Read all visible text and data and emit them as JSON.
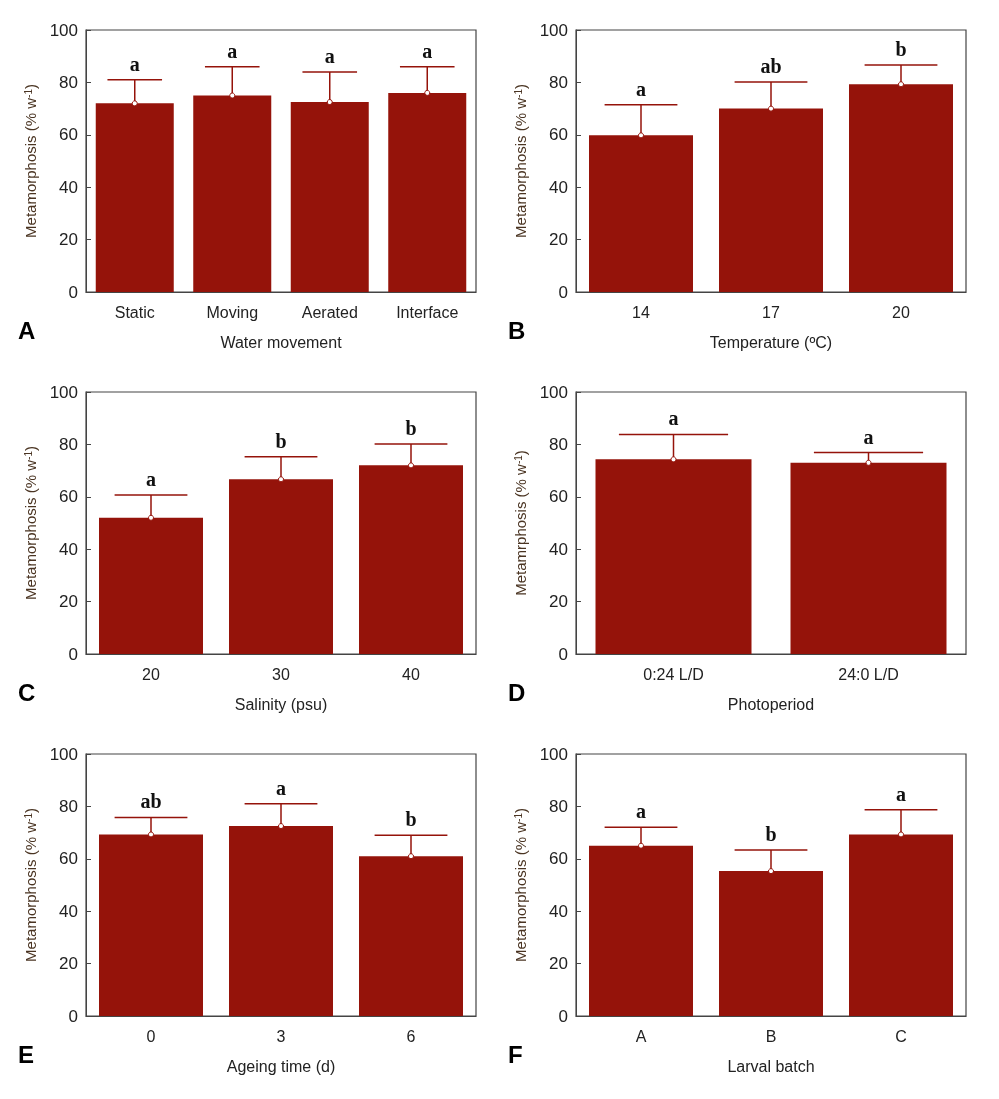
{
  "chart_data": [
    {
      "type": "bar",
      "categories": [
        "Static",
        "Moving",
        "Aerated",
        "Interface"
      ],
      "values": [
        72,
        75,
        72.5,
        76
      ],
      "errors": [
        [
          72,
          81
        ],
        [
          75,
          86
        ],
        [
          72.5,
          84
        ],
        [
          76,
          86
        ]
      ],
      "color": "#95130a",
      "ylabel": "Metamorphosis (% w$^{-1}$)",
      "xlabel": "Water movement",
      "ylim": [
        0,
        100
      ],
      "yticks": [
        0,
        20,
        40,
        60,
        80,
        100
      ],
      "annotations": [
        "A",
        {
          "text": "a",
          "x": "Static",
          "y": 81
        },
        {
          "text": "a",
          "x": "Moving",
          "y": 86
        },
        {
          "text": "a",
          "x": "Aerated",
          "y": 84
        },
        {
          "text": "a",
          "x": "Interface",
          "y": 86
        }
      ]
    },
    {
      "type": "bar",
      "categories": [
        "14",
        "17",
        "20"
      ],
      "values": [
        59.8,
        70,
        79.3
      ],
      "errors": [
        [
          59.8,
          71.5
        ],
        [
          70,
          80.2
        ],
        [
          79.3,
          86.6
        ]
      ],
      "color": "#95130a",
      "ylabel": "Metamorphosis (% w$^{-1}$)",
      "xlabel": "Temperature (ºC)",
      "ylim": [
        0,
        100
      ],
      "yticks": [
        0,
        20,
        40,
        60,
        80,
        100
      ],
      "annotations": [
        "B",
        {
          "text": "a",
          "x": "14",
          "y": 71.5
        },
        {
          "text": "ab",
          "x": "17",
          "y": 80.2
        },
        {
          "text": "b",
          "x": "20",
          "y": 86.6
        }
      ]
    },
    {
      "type": "bar",
      "categories": [
        "20",
        "30",
        "40"
      ],
      "values": [
        52,
        66.7,
        72
      ],
      "errors": [
        [
          52,
          60.7
        ],
        [
          66.7,
          75.3
        ],
        [
          72,
          80.2
        ]
      ],
      "color": "#95130a",
      "ylabel": "Metamorphosis (% w$^{-1}$)",
      "xlabel": "Salinity (psu)",
      "ylim": [
        0,
        100
      ],
      "yticks": [
        0,
        20,
        40,
        60,
        80,
        100
      ],
      "annotations": [
        "C",
        {
          "text": "a",
          "x": "20",
          "y": 60.7
        },
        {
          "text": "b",
          "x": "30",
          "y": 75.3
        },
        {
          "text": "b",
          "x": "40",
          "y": 80.2
        }
      ]
    },
    {
      "type": "bar",
      "categories": [
        "0:24 L/D",
        "24:0 L/D"
      ],
      "values": [
        74.3,
        73
      ],
      "errors": [
        [
          74.3,
          83.8
        ],
        [
          73,
          76.9
        ]
      ],
      "color": "#95130a",
      "ylabel": "Metamrphosis (% w$^{-1}$)",
      "xlabel": "Photoperiod",
      "ylim": [
        0,
        100
      ],
      "yticks": [
        0,
        20,
        40,
        60,
        80,
        100
      ],
      "annotations": [
        "D",
        {
          "text": "a",
          "x": "0:24 L/D",
          "y": 83.8
        },
        {
          "text": "a",
          "x": "24:0 L/D",
          "y": 76.9
        }
      ]
    },
    {
      "type": "bar",
      "categories": [
        "0",
        "3",
        "6"
      ],
      "values": [
        69.3,
        72.5,
        61
      ],
      "errors": [
        [
          69.3,
          75.8
        ],
        [
          72.5,
          81
        ],
        [
          61,
          69
        ]
      ],
      "color": "#95130a",
      "ylabel": "Metamorphosis (% w$^{-1}$)",
      "xlabel": "Ageing time (d)",
      "ylim": [
        0,
        100
      ],
      "yticks": [
        0,
        20,
        40,
        60,
        80,
        100
      ],
      "annotations": [
        "E",
        {
          "text": "ab",
          "x": "0",
          "y": 75.8
        },
        {
          "text": "a",
          "x": "3",
          "y": 81
        },
        {
          "text": "b",
          "x": "6",
          "y": 69
        }
      ]
    },
    {
      "type": "bar",
      "categories": [
        "A",
        "B",
        "C"
      ],
      "values": [
        65,
        55.3,
        69.3
      ],
      "errors": [
        [
          65,
          72
        ],
        [
          55.3,
          63.4
        ],
        [
          69.3,
          78.7
        ]
      ],
      "color": "#95130a",
      "ylabel": "Metamorphosis (% w$^{-1}$)",
      "xlabel": "Larval batch",
      "ylim": [
        0,
        100
      ],
      "yticks": [
        0,
        20,
        40,
        60,
        80,
        100
      ],
      "annotations": [
        "F",
        {
          "text": "a",
          "x": "A",
          "y": 72
        },
        {
          "text": "b",
          "x": "B",
          "y": 63.4
        },
        {
          "text": "a",
          "x": "C",
          "y": 78.7
        }
      ]
    }
  ]
}
